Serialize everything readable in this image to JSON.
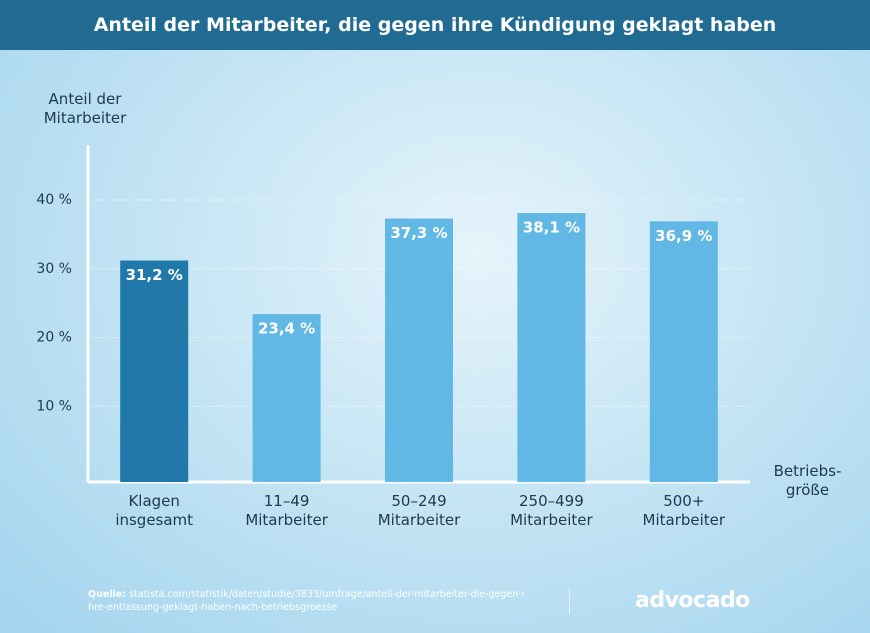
{
  "chart_data": {
    "type": "bar",
    "title": "Anteil der Mitarbeiter, die gegen ihre Kündigung geklagt haben",
    "y_axis_label": "Anteil der\nMitarbeiter",
    "x_axis_label": "Betriebs-\ngröße",
    "categories": [
      "Klagen\ninsgesamt",
      "11–49\nMitarbeiter",
      "50–249\nMitarbeiter",
      "250–499\nMitarbeiter",
      "500+\nMitarbeiter"
    ],
    "values": [
      31.2,
      23.4,
      37.3,
      38.1,
      36.9
    ],
    "value_labels": [
      "31,2 %",
      "23,4 %",
      "37,3 %",
      "38,1 %",
      "36,9 %"
    ],
    "colors": [
      "#2079a9",
      "#62b8e4",
      "#62b8e4",
      "#62b8e4",
      "#62b8e4"
    ],
    "ylim": [
      0,
      48
    ],
    "yticks": [
      {
        "value": 10,
        "label": "10 %"
      },
      {
        "value": 20,
        "label": "20 %"
      },
      {
        "value": 30,
        "label": "30 %"
      },
      {
        "value": 40,
        "label": "40 %"
      }
    ],
    "grid": true
  },
  "footer": {
    "source_label": "Quelle:",
    "source": "statista.com/statistik/daten/studie/3833/umfrage/anteil-der-mitarbeiter-die-gegen-ihre-entlassung-geklagt-haben-nach-betriebsgroesse",
    "logo": "advocado"
  }
}
